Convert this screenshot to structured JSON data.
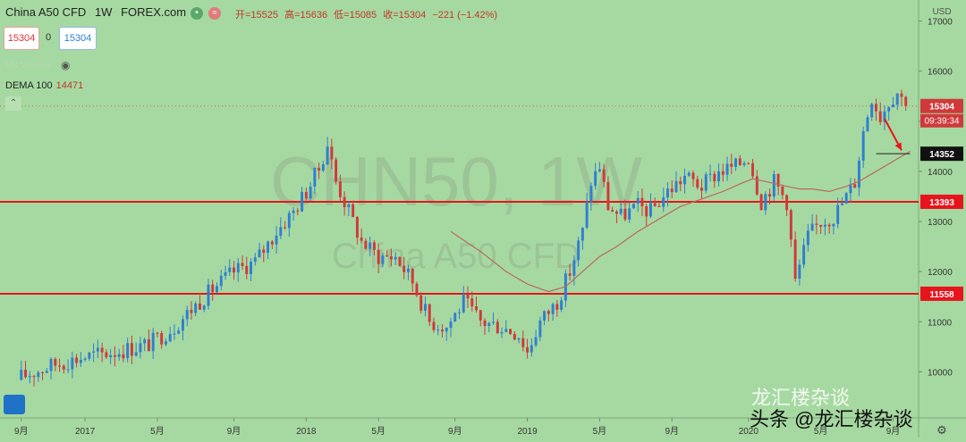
{
  "header": {
    "symbol": "China A50 CFD",
    "interval": "1W",
    "source": "FOREX.com",
    "open_label": "开=15525",
    "high_label": "高=15636",
    "low_label": "低=15085",
    "close_label": "收=15304",
    "change_label": "−221 (−1.42%)"
  },
  "trade": {
    "sell": "15304",
    "spread": "0",
    "buy": "15304"
  },
  "indicators": {
    "volume_label": "Vol Volume",
    "dema_label": "DEMA 100",
    "dema_value": "14471"
  },
  "watermark": {
    "line1": "CHN50, 1W",
    "line2": "China A50 CFD"
  },
  "footer_watermark": {
    "line1": "龙汇楼杂谈",
    "line2": "头条 @龙汇楼杂谈"
  },
  "colors": {
    "bg": "#a6d9a1",
    "up": "#2f7fd0",
    "down": "#d0393b",
    "hline": "#e8141c",
    "ma": "#b86a64"
  },
  "chart_data": {
    "type": "candlestick",
    "title": "China A50 CFD, 1W, FOREX.com",
    "y_axis_label": "USD",
    "ylim": [
      9080,
      17420
    ],
    "y_ticks": [
      10000,
      11000,
      12000,
      13000,
      14000,
      15000,
      16000,
      17000
    ],
    "y_tick_labels": [
      "10000",
      "11000",
      "12000",
      "13000",
      "14000",
      "15000",
      "16000",
      "17000"
    ],
    "x_ticks": [
      {
        "label": "9月",
        "t": 0
      },
      {
        "label": "2017",
        "t": 15
      },
      {
        "label": "5月",
        "t": 32
      },
      {
        "label": "9月",
        "t": 50
      },
      {
        "label": "2018",
        "t": 67
      },
      {
        "label": "5月",
        "t": 84
      },
      {
        "label": "9月",
        "t": 102
      },
      {
        "label": "2019",
        "t": 119
      },
      {
        "label": "5月",
        "t": 136
      },
      {
        "label": "9月",
        "t": 153
      },
      {
        "label": "2020",
        "t": 171
      },
      {
        "label": "5月",
        "t": 188
      },
      {
        "label": "9月",
        "t": 205
      }
    ],
    "price_path": [
      [
        0,
        9900
      ],
      [
        8,
        10150
      ],
      [
        15,
        10300
      ],
      [
        22,
        10400
      ],
      [
        30,
        10550
      ],
      [
        36,
        10900
      ],
      [
        40,
        11250
      ],
      [
        45,
        11650
      ],
      [
        50,
        12000
      ],
      [
        55,
        12200
      ],
      [
        60,
        12800
      ],
      [
        64,
        13200
      ],
      [
        67,
        13600
      ],
      [
        70,
        14050
      ],
      [
        72,
        14550
      ],
      [
        74,
        13800
      ],
      [
        77,
        13200
      ],
      [
        80,
        12600
      ],
      [
        84,
        12300
      ],
      [
        88,
        12300
      ],
      [
        92,
        11800
      ],
      [
        96,
        11000
      ],
      [
        100,
        10900
      ],
      [
        104,
        11400
      ],
      [
        108,
        11000
      ],
      [
        113,
        10900
      ],
      [
        117,
        10750
      ],
      [
        119,
        10400
      ],
      [
        122,
        11000
      ],
      [
        126,
        11400
      ],
      [
        129,
        12000
      ],
      [
        132,
        12800
      ],
      [
        134,
        13800
      ],
      [
        136,
        14100
      ],
      [
        138,
        13300
      ],
      [
        141,
        13100
      ],
      [
        145,
        13300
      ],
      [
        148,
        13200
      ],
      [
        152,
        13600
      ],
      [
        156,
        13900
      ],
      [
        160,
        13700
      ],
      [
        164,
        14000
      ],
      [
        168,
        14100
      ],
      [
        171,
        14300
      ],
      [
        174,
        13400
      ],
      [
        177,
        13800
      ],
      [
        180,
        13400
      ],
      [
        182,
        11800
      ],
      [
        185,
        12700
      ],
      [
        188,
        13000
      ],
      [
        191,
        13100
      ],
      [
        194,
        13500
      ],
      [
        196,
        13800
      ],
      [
        198,
        14800
      ],
      [
        200,
        15500
      ],
      [
        202,
        15100
      ],
      [
        204,
        15400
      ],
      [
        206,
        15600
      ],
      [
        208,
        15304
      ]
    ],
    "series": [
      {
        "name": "DEMA 100",
        "points": [
          [
            101,
            12800
          ],
          [
            108,
            12400
          ],
          [
            114,
            12000
          ],
          [
            119,
            11750
          ],
          [
            124,
            11600
          ],
          [
            128,
            11700
          ],
          [
            132,
            12000
          ],
          [
            136,
            12300
          ],
          [
            140,
            12500
          ],
          [
            145,
            12800
          ],
          [
            150,
            13050
          ],
          [
            155,
            13300
          ],
          [
            160,
            13450
          ],
          [
            165,
            13600
          ],
          [
            169,
            13750
          ],
          [
            172,
            13850
          ],
          [
            176,
            13780
          ],
          [
            180,
            13700
          ],
          [
            183,
            13650
          ],
          [
            186,
            13650
          ],
          [
            190,
            13600
          ],
          [
            194,
            13700
          ],
          [
            197,
            13800
          ],
          [
            200,
            13950
          ],
          [
            203,
            14100
          ],
          [
            206,
            14250
          ],
          [
            209,
            14400
          ]
        ]
      }
    ],
    "horizontal_lines": [
      {
        "value": 13393,
        "label": "13393"
      },
      {
        "value": 11558,
        "label": "11558"
      }
    ],
    "price_tags": [
      {
        "value": 15304,
        "label": "15304",
        "sub": "09:39:34",
        "color": "#d0393b"
      },
      {
        "value": 14352,
        "label": "14352",
        "color": "#111111"
      }
    ],
    "annotation_line": {
      "from": [
        201,
        14352
      ],
      "to": [
        209,
        14352
      ]
    },
    "arrow": {
      "from": [
        203,
        15050
      ],
      "to": [
        207,
        14420
      ]
    }
  }
}
